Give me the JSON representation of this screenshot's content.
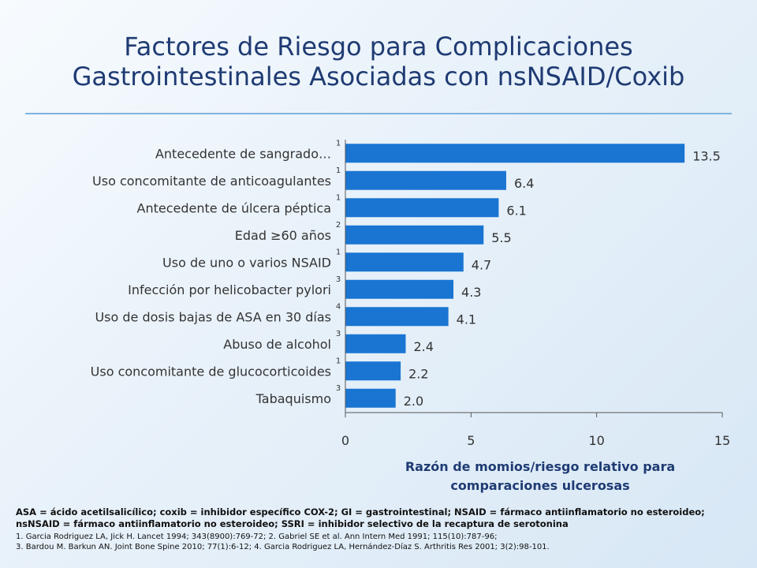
{
  "title_line1": "Factores de Riesgo para Complicaciones",
  "title_line2": "Gastrointestinales Asociadas con nsNSAID/Coxib",
  "chart_data": {
    "type": "bar",
    "orientation": "horizontal",
    "categories": [
      "Antecedente de sangrado…",
      "Uso concomitante de anticoagulantes",
      "Antecedente de úlcera péptica",
      "Edad ≥60 años",
      "Uso de uno o varios NSAID",
      "Infección por helicobacter pylori",
      "Uso de dosis bajas de ASA en 30 días",
      "Abuso de alcohol",
      "Uso concomitante de glucocorticoides",
      "Tabaquismo"
    ],
    "references": [
      "1",
      "1",
      "1",
      "2",
      "1",
      "3",
      "4",
      "3",
      "1",
      "3"
    ],
    "values": [
      13.5,
      6.4,
      6.1,
      5.5,
      4.7,
      4.3,
      4.1,
      2.4,
      2.2,
      2.0
    ],
    "value_labels": [
      "13.5",
      "6.4",
      "6.1",
      "5.5",
      "4.7",
      "4.3",
      "4.1",
      "2.4",
      "2.2",
      "2.0"
    ],
    "xlim": [
      0,
      15
    ],
    "xticks": [
      "0",
      "5",
      "10",
      "15"
    ],
    "xlabel_line1": "Razón de momios/riesgo relativo para",
    "xlabel_line2": "comparaciones ulcerosas",
    "bar_color": "#1a75d2",
    "grid": false
  },
  "footer": {
    "abbrev_line1": "ASA = ácido acetilsalicílico; coxib = inhibidor específico COX-2; GI = gastrointestinal; NSAID = fármaco antiinflamatorio no esteroideo;",
    "abbrev_line2": "nsNSAID = fármaco antiinflamatorio no esteroideo; SSRI = inhibidor selectivo de la recaptura de serotonina",
    "ref_line1": "1. Garcia Rodriguez LA, Jick H. Lancet 1994; 343(8900):769-72; 2. Gabriel SE et al. Ann Intern Med 1991; 115(10):787-96;",
    "ref_line2": "3. Bardou M. Barkun AN. Joint Bone Spine 2010; 77(1):6-12; 4. Garcia Rodriguez LA, Hernández-Díaz S. Arthritis Res 2001; 3(2):98-101."
  }
}
